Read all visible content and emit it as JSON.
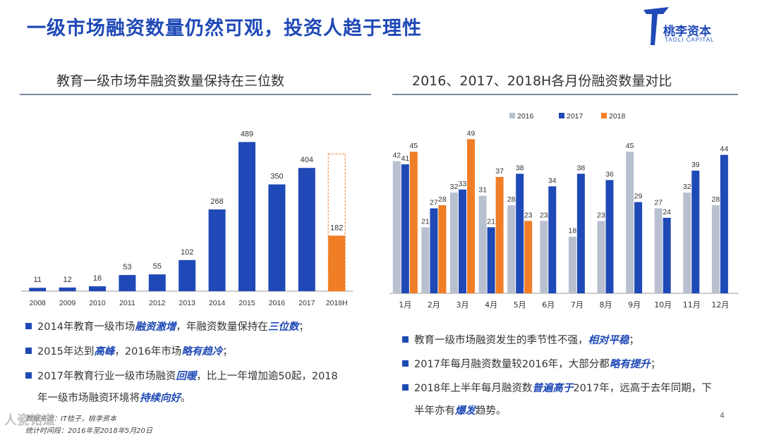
{
  "slide": {
    "title": "一级市场融资数量仍然可观，投资人趋于理性",
    "logo": {
      "name": "桃李资本",
      "sub": "TAOLI CAPITAL"
    },
    "page_number": "4",
    "watermark": "人瓷铭道"
  },
  "left": {
    "subtitle": "教育一级市场年融资数量保持在三位数",
    "bullets": [
      {
        "pre": "2014年教育一级市场",
        "hl": "融资激增",
        "mid": "，年融资数量保持在",
        "hl2": "三位数",
        "post": "；"
      },
      {
        "pre": "2015年达到",
        "hl": "高峰",
        "mid": "，2016年市场",
        "hl2": "略有趋冷",
        "post": "；"
      },
      {
        "pre": "2017年教育行业一级市场融资",
        "hl": "回暖",
        "mid": "，比上一年增加逾50起，2018",
        "hl2": "",
        "post": ""
      }
    ],
    "bullet3_line2": {
      "pre": "年一级市场融资环境将",
      "hl": "持续向好",
      "post": "。"
    },
    "source_line1": "数据来源：IT桔子，桃李资本",
    "source_line2": "统计时间段：2016年至2018年5月20日"
  },
  "right": {
    "subtitle": "2016、2017、2018H各月份融资数量对比",
    "bullets": [
      {
        "pre": "教育一级市场融资发生的季节性不强，",
        "hl": "相对平稳",
        "post": "；"
      },
      {
        "pre": "2017年每月融资数量较2016年，大部分都",
        "hl": "略有提升",
        "post": "；"
      },
      {
        "pre": "2018年上半年每月融资数",
        "hl": "普遍高于",
        "post": "2017年，远高于去年同期，下"
      }
    ],
    "bullet3_line2": {
      "pre": "半年亦有",
      "hl": "爆发",
      "post": "趋势。"
    }
  },
  "chart_data": [
    {
      "type": "bar",
      "title": "教育一级市场年融资数量保持在三位数",
      "categories": [
        "2008",
        "2009",
        "2010",
        "2011",
        "2012",
        "2013",
        "2014",
        "2015",
        "2016",
        "2017",
        "2018H"
      ],
      "values": [
        11,
        12,
        16,
        53,
        55,
        102,
        268,
        489,
        350,
        404,
        182
      ],
      "colors": {
        "default": "#1f49b6",
        "highlight": "#f07e26",
        "highlight_category": "2018H",
        "dashed_outline_category": "2018H"
      },
      "ylim": [
        0,
        520
      ],
      "grid": false
    },
    {
      "type": "bar",
      "title": "2016、2017、2018H各月份融资数量对比",
      "categories": [
        "1月",
        "2月",
        "3月",
        "4月",
        "5月",
        "6月",
        "7月",
        "8月",
        "9月",
        "10月",
        "11月",
        "12月"
      ],
      "series": [
        {
          "name": "2016",
          "color": "#b8c0cf",
          "values": [
            42,
            21,
            32,
            31,
            28,
            23,
            18,
            23,
            45,
            27,
            32,
            28
          ]
        },
        {
          "name": "2017",
          "color": "#1f49b6",
          "values": [
            41,
            27,
            33,
            21,
            38,
            34,
            38,
            36,
            29,
            24,
            39,
            44
          ]
        },
        {
          "name": "2018",
          "color": "#f07e26",
          "values": [
            45,
            28,
            49,
            37,
            23,
            null,
            null,
            null,
            null,
            null,
            null,
            null
          ]
        }
      ],
      "legend": "top",
      "ylim": [
        0,
        52
      ],
      "grid": false
    }
  ]
}
